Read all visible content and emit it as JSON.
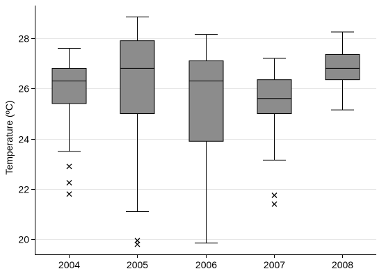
{
  "chart_data": {
    "type": "box",
    "title": "",
    "xlabel": "",
    "ylabel": "Temperature (ºC)",
    "ylim": [
      19.4,
      29.3
    ],
    "yticks": [
      20,
      22,
      24,
      26,
      28
    ],
    "grid": true,
    "categories": [
      "2004",
      "2005",
      "2006",
      "2007",
      "2008"
    ],
    "boxes": [
      {
        "category": "2004",
        "min": 23.5,
        "q1": 25.4,
        "median": 26.3,
        "q3": 26.8,
        "max": 27.6,
        "outliers": [
          22.9,
          22.25,
          21.8
        ]
      },
      {
        "category": "2005",
        "min": 21.1,
        "q1": 25.0,
        "median": 26.8,
        "q3": 27.9,
        "max": 28.85,
        "outliers": [
          19.95,
          19.8
        ]
      },
      {
        "category": "2006",
        "min": 19.85,
        "q1": 23.9,
        "median": 26.3,
        "q3": 27.1,
        "max": 28.15,
        "outliers": []
      },
      {
        "category": "2007",
        "min": 23.15,
        "q1": 25.0,
        "median": 25.6,
        "q3": 26.35,
        "max": 27.2,
        "outliers": [
          21.75,
          21.4
        ]
      },
      {
        "category": "2008",
        "min": 25.15,
        "q1": 26.35,
        "median": 26.8,
        "q3": 27.35,
        "max": 28.25,
        "outliers": []
      }
    ]
  }
}
